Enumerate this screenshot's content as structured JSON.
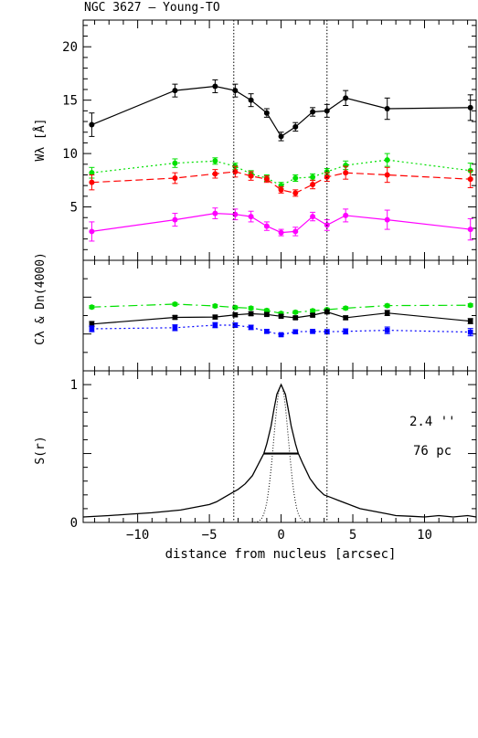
{
  "chart_data": [
    {
      "type": "line",
      "panel": "W",
      "title": "NGC 3627  –  Young-TO",
      "ylabel": "Wλ [Å]",
      "xlabel": "",
      "xlim": [
        -13.8,
        13.6
      ],
      "ylim": [
        0,
        22.5
      ],
      "yticks_labeled": [
        5,
        10,
        15,
        20
      ],
      "x": [
        -13.2,
        -7.4,
        -4.6,
        -3.2,
        -2.1,
        -1.0,
        0.0,
        1.0,
        2.2,
        3.2,
        4.5,
        7.4,
        13.2
      ],
      "series": [
        {
          "color": "#000000",
          "dash": "",
          "y": [
            12.7,
            15.9,
            16.3,
            15.9,
            15.0,
            13.8,
            11.6,
            12.5,
            13.9,
            14.0,
            15.2,
            14.2,
            14.3
          ],
          "err": [
            1.1,
            0.6,
            0.6,
            0.6,
            0.6,
            0.4,
            0.4,
            0.4,
            0.4,
            0.6,
            0.7,
            1.0,
            1.2
          ]
        },
        {
          "color": "#00e000",
          "dash": "2,3",
          "y": [
            8.2,
            9.1,
            9.3,
            8.8,
            8.1,
            7.7,
            7.0,
            7.7,
            7.8,
            8.3,
            8.9,
            9.4,
            8.4
          ],
          "err": [
            0.5,
            0.4,
            0.3,
            0.3,
            0.3,
            0.3,
            0.3,
            0.3,
            0.3,
            0.3,
            0.4,
            0.6,
            0.7
          ]
        },
        {
          "color": "#ff0000",
          "dash": "8,4",
          "y": [
            7.3,
            7.7,
            8.1,
            8.3,
            7.9,
            7.6,
            6.6,
            6.3,
            7.1,
            7.8,
            8.2,
            8.0,
            7.6
          ],
          "err": [
            0.7,
            0.5,
            0.4,
            0.5,
            0.4,
            0.3,
            0.3,
            0.3,
            0.4,
            0.4,
            0.6,
            0.7,
            0.8
          ]
        },
        {
          "color": "#ff00ff",
          "dash": "",
          "y": [
            2.7,
            3.8,
            4.4,
            4.3,
            4.1,
            3.2,
            2.6,
            2.7,
            4.1,
            3.3,
            4.2,
            3.8,
            2.9
          ],
          "err": [
            0.9,
            0.6,
            0.5,
            0.5,
            0.5,
            0.4,
            0.3,
            0.4,
            0.4,
            0.5,
            0.6,
            0.9,
            1.0
          ]
        }
      ]
    },
    {
      "type": "line",
      "panel": "C",
      "ylabel": "Cλ & Dn(4000)",
      "xlabel": "",
      "xlim": [
        -13.8,
        13.6
      ],
      "ylim": [
        0,
        3
      ],
      "yticks_labeled": [],
      "x": [
        -13.2,
        -7.4,
        -4.6,
        -3.2,
        -2.1,
        -1.0,
        0.0,
        1.0,
        2.2,
        3.2,
        4.5,
        7.4,
        13.2
      ],
      "series": [
        {
          "color": "#00e000",
          "dash": "10,4,2,4",
          "marker": "circle",
          "y": [
            1.73,
            1.81,
            1.76,
            1.72,
            1.7,
            1.64,
            1.56,
            1.59,
            1.63,
            1.66,
            1.7,
            1.77,
            1.78
          ],
          "err": [
            0.04,
            0.04,
            0.04,
            0.04,
            0.04,
            0.04,
            0.04,
            0.04,
            0.04,
            0.04,
            0.04,
            0.04,
            0.04
          ]
        },
        {
          "color": "#000000",
          "dash": "",
          "marker": "square",
          "y": [
            1.27,
            1.45,
            1.46,
            1.52,
            1.55,
            1.53,
            1.48,
            1.44,
            1.51,
            1.6,
            1.44,
            1.57,
            1.35
          ],
          "err": [
            0.07,
            0.05,
            0.05,
            0.05,
            0.05,
            0.04,
            0.04,
            0.04,
            0.04,
            0.05,
            0.05,
            0.07,
            0.07
          ]
        },
        {
          "color": "#0000ff",
          "dash": "2,3",
          "marker": "square",
          "y": [
            1.14,
            1.17,
            1.24,
            1.24,
            1.18,
            1.07,
            0.98,
            1.06,
            1.07,
            1.06,
            1.07,
            1.1,
            1.05
          ],
          "err": [
            0.08,
            0.08,
            0.07,
            0.06,
            0.06,
            0.05,
            0.04,
            0.05,
            0.05,
            0.06,
            0.07,
            0.09,
            0.1
          ]
        }
      ]
    },
    {
      "type": "line",
      "panel": "S",
      "ylabel": "S(r)",
      "xlabel": "distance from nucleus [arcsec]",
      "xlim": [
        -13.8,
        13.6
      ],
      "ylim": [
        0,
        1.1
      ],
      "yticks_labeled": [
        0,
        1
      ],
      "xticks_labeled": [
        -10,
        -5,
        0,
        5,
        10
      ],
      "annotations": [
        "2.4 ''",
        "76 pc"
      ],
      "profile": {
        "x": [
          -13.8,
          -12,
          -10.5,
          -9,
          -8,
          -7,
          -6,
          -5,
          -4.5,
          -4,
          -3.5,
          -3,
          -2.5,
          -2,
          -1.5,
          -1.2,
          -1,
          -0.7,
          -0.5,
          -0.3,
          0,
          0.3,
          0.5,
          0.7,
          1,
          1.2,
          1.5,
          2,
          2.5,
          3,
          3.5,
          4,
          4.5,
          5,
          5.5,
          6,
          6.5,
          7,
          7.5,
          8,
          9,
          10,
          11,
          12,
          13,
          13.6
        ],
        "y": [
          0.04,
          0.05,
          0.06,
          0.07,
          0.08,
          0.09,
          0.11,
          0.13,
          0.15,
          0.18,
          0.21,
          0.24,
          0.28,
          0.34,
          0.44,
          0.5,
          0.57,
          0.7,
          0.82,
          0.93,
          1.0,
          0.93,
          0.82,
          0.7,
          0.57,
          0.5,
          0.43,
          0.32,
          0.25,
          0.2,
          0.18,
          0.16,
          0.14,
          0.12,
          0.1,
          0.09,
          0.08,
          0.07,
          0.06,
          0.05,
          0.045,
          0.04,
          0.05,
          0.04,
          0.05,
          0.04
        ]
      },
      "psf_fwhm": 1.2,
      "fwhm": {
        "x1": -1.2,
        "x2": 1.2,
        "y": 0.5
      },
      "vlines": [
        -3.3,
        3.2
      ]
    }
  ]
}
